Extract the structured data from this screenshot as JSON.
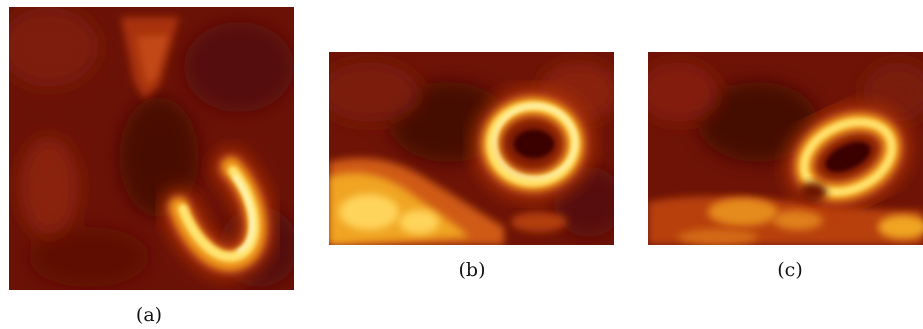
{
  "colormap": "hot",
  "colors": {
    "background": "#6b1206",
    "dark": "#3a0503",
    "mid": "#a02a08",
    "bright": "#f2a020",
    "peak": "#fff6b0"
  },
  "figure": {
    "panels": [
      {
        "id": "a",
        "caption": "(a)",
        "shape": "u-shaped-ring"
      },
      {
        "id": "b",
        "caption": "(b)",
        "shape": "ring"
      },
      {
        "id": "c",
        "caption": "(c)",
        "shape": "tilted-ring"
      }
    ]
  }
}
